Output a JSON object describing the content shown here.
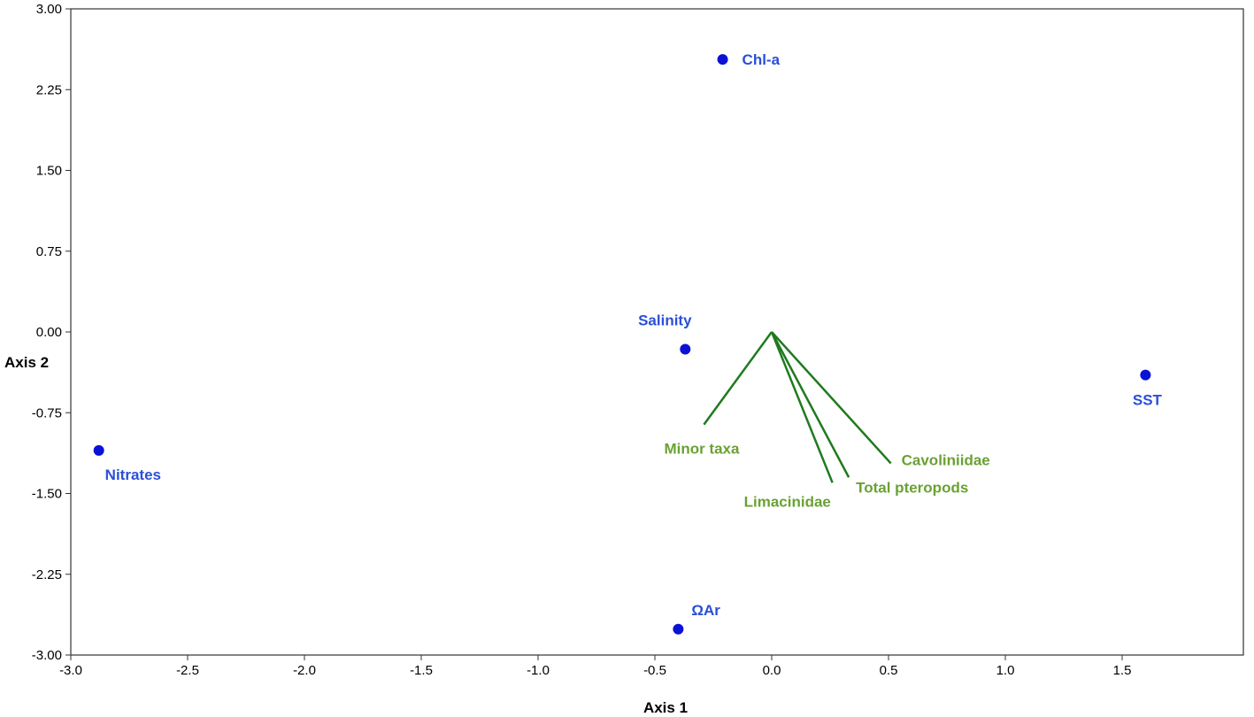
{
  "chart_data": {
    "type": "scatter",
    "xlabel": "Axis 1",
    "ylabel": "Axis 2",
    "xlim": [
      -3.0,
      2.0
    ],
    "ylim": [
      -3.0,
      3.0
    ],
    "xticks": [
      -3.0,
      -2.5,
      -2.0,
      -1.5,
      -1.0,
      -0.5,
      0.0,
      0.5,
      1.0,
      1.5
    ],
    "xtick_labels": [
      "-3.0",
      "-2.5",
      "-2.0",
      "-1.5",
      "-1.0",
      "-0.5",
      "0.0",
      "0.5",
      "1.0",
      "1.5"
    ],
    "yticks": [
      3.0,
      2.25,
      1.5,
      0.75,
      0.0,
      -0.75,
      -1.5,
      -2.25,
      -3.0
    ],
    "ytick_labels": [
      "3.00",
      "2.25",
      "1.50",
      "0.75",
      "0.00",
      "-0.75",
      "-1.50",
      "-2.25",
      "-3.00"
    ],
    "grid": false,
    "point_color": "#0a12d6",
    "point_label_color": "#2a4fd8",
    "vector_color": "#1f7a1f",
    "vector_label_color": "#6aa133",
    "points": [
      {
        "label": "Chl-a",
        "x": -0.21,
        "y": 2.53,
        "label_anchor": "right"
      },
      {
        "label": "Salinity",
        "x": -0.37,
        "y": -0.16,
        "label_anchor": "above"
      },
      {
        "label": "SST",
        "x": 1.6,
        "y": -0.4,
        "label_anchor": "below"
      },
      {
        "label": "Nitrates",
        "x": -2.88,
        "y": -1.1,
        "label_anchor": "below-right"
      },
      {
        "label": "ΩAr",
        "x": -0.4,
        "y": -2.76,
        "label_anchor": "above-right"
      }
    ],
    "vectors": [
      {
        "label": "Minor taxa",
        "x": -0.29,
        "y": -0.86
      },
      {
        "label": "Limacinidae",
        "x": 0.26,
        "y": -1.4
      },
      {
        "label": "Total pteropods",
        "x": 0.33,
        "y": -1.35
      },
      {
        "label": "Cavoliniidae",
        "x": 0.51,
        "y": -1.22
      }
    ]
  }
}
